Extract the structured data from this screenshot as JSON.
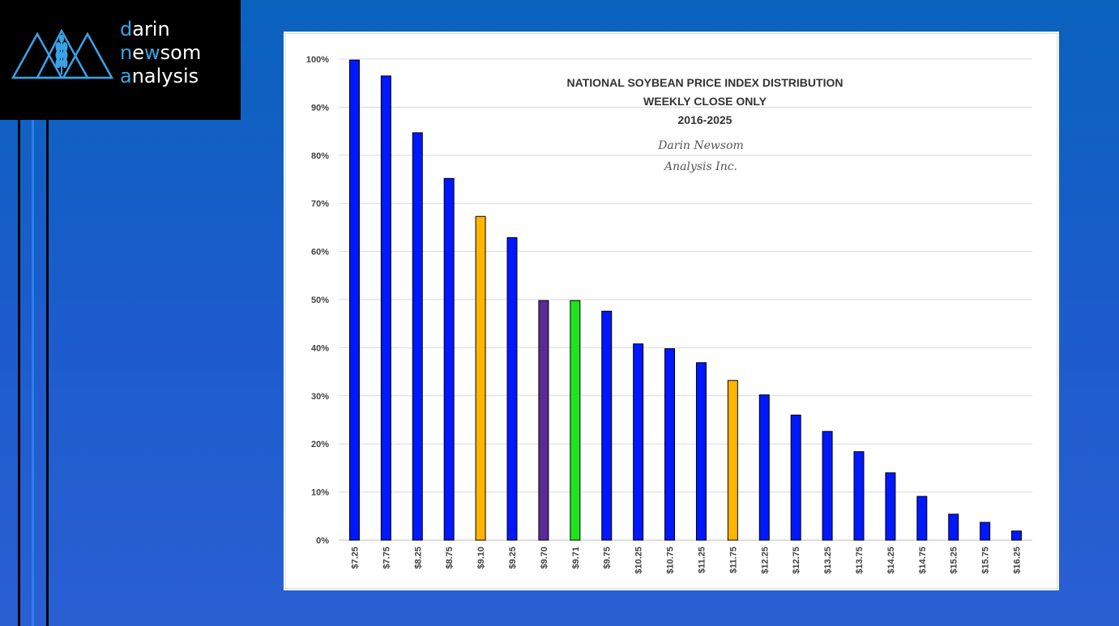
{
  "logo": {
    "line1_first": "d",
    "line1_rest": "arin",
    "line2_first": "n",
    "line2_mid": "e",
    "line2_w": "w",
    "line2_rest": "som",
    "line3_first": "a",
    "line3_rest": "nalysis"
  },
  "colors": {
    "background": "#1f5fcc",
    "logo_bg": "#000000",
    "logo_accent": "#3aa3e6",
    "bar_default": "#0018ff",
    "bar_gold": "#ffb400",
    "bar_purple": "#5b2a96",
    "bar_green": "#1fe31f"
  },
  "chart_data": {
    "type": "bar",
    "title": "NATIONAL SOYBEAN PRICE INDEX DISTRIBUTION",
    "subtitle_lines": [
      "WEEKLY CLOSE ONLY",
      "2016-2025"
    ],
    "watermark_lines": [
      "Darin Newsom",
      "Analysis Inc."
    ],
    "xlabel": "",
    "ylabel": "",
    "ylim": [
      0,
      100
    ],
    "y_ticks": [
      "0%",
      "10%",
      "20%",
      "30%",
      "40%",
      "50%",
      "60%",
      "70%",
      "80%",
      "90%",
      "100%"
    ],
    "grid": true,
    "legend": "none",
    "categories": [
      "$7.25",
      "$7.75",
      "$8.25",
      "$8.75",
      "$9.10",
      "$9.25",
      "$9.70",
      "$9.71",
      "$9.75",
      "$10.25",
      "$10.75",
      "$11.25",
      "$11.75",
      "$12.25",
      "$12.75",
      "$13.25",
      "$13.75",
      "$14.25",
      "$14.75",
      "$15.25",
      "$15.75",
      "$16.25"
    ],
    "values": [
      99.8,
      96.5,
      84.7,
      75.2,
      67.3,
      62.9,
      49.8,
      49.8,
      47.6,
      40.8,
      39.8,
      36.9,
      33.2,
      30.2,
      26.0,
      22.6,
      18.4,
      14.0,
      9.1,
      5.4,
      3.7,
      1.9
    ],
    "bar_colors": [
      "#0018ff",
      "#0018ff",
      "#0018ff",
      "#0018ff",
      "#ffb400",
      "#0018ff",
      "#5b2a96",
      "#1fe31f",
      "#0018ff",
      "#0018ff",
      "#0018ff",
      "#0018ff",
      "#ffb400",
      "#0018ff",
      "#0018ff",
      "#0018ff",
      "#0018ff",
      "#0018ff",
      "#0018ff",
      "#0018ff",
      "#0018ff",
      "#0018ff"
    ]
  }
}
